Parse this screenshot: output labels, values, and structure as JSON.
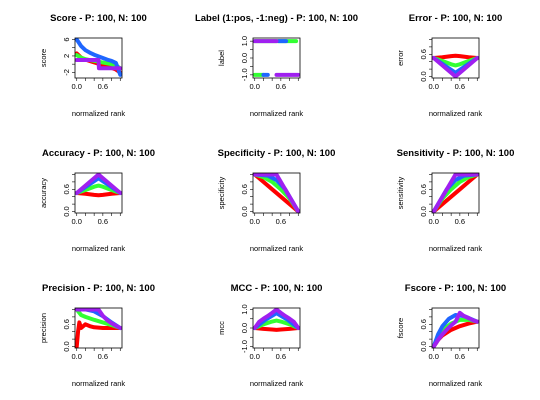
{
  "chart_data": [
    {
      "type": "line",
      "title": "Score - P: 100, N: 100",
      "xlabel": "normalized rank",
      "ylabel": "score",
      "xlim": [
        0,
        1
      ],
      "ylim": [
        -3,
        6
      ],
      "xticks": [
        "0.0",
        "0.6"
      ],
      "yticks": [
        "-2",
        "2",
        "6"
      ],
      "series": [
        {
          "color": "#ff0000",
          "x": [
            0,
            0.1,
            0.2,
            0.35,
            0.5,
            0.65,
            0.8,
            0.9,
            1.0
          ],
          "y": [
            2.6,
            1.6,
            1.1,
            0.6,
            0.1,
            -0.4,
            -0.9,
            -1.3,
            -2.0
          ]
        },
        {
          "color": "#33ff33",
          "x": [
            0,
            0.1,
            0.2,
            0.35,
            0.5,
            0.65,
            0.8,
            0.9,
            1.0
          ],
          "y": [
            2.2,
            1.6,
            1.2,
            0.9,
            0.6,
            0.3,
            0.0,
            -0.3,
            -1.0
          ]
        },
        {
          "color": "#1f66ff",
          "x": [
            0,
            0.05,
            0.1,
            0.2,
            0.3,
            0.4,
            0.5,
            0.6,
            0.7,
            0.8,
            0.9,
            1.0
          ],
          "y": [
            6.0,
            5.2,
            4.4,
            3.4,
            2.8,
            2.3,
            1.9,
            1.5,
            1.1,
            0.8,
            0.3,
            -2.6
          ]
        },
        {
          "color": "#a020f0",
          "x": [
            0,
            0.5,
            0.51,
            1.0
          ],
          "y": [
            1.0,
            1.0,
            -1.0,
            -1.0
          ]
        }
      ]
    },
    {
      "type": "scatter",
      "title": "Label (1:pos, -1:neg) - P: 100, N: 100",
      "xlabel": "normalized rank",
      "ylabel": "label",
      "xlim": [
        0,
        1
      ],
      "ylim": [
        -1.1,
        1.1
      ],
      "xticks": [
        "0.0",
        "0.6"
      ],
      "yticks": [
        "-1.0",
        "0.0",
        "1.0"
      ],
      "series": [
        {
          "color": "#33ff33",
          "x": [
            0,
            0.95
          ],
          "y": [
            1,
            1
          ]
        },
        {
          "color": "#33ff33",
          "x": [
            0,
            0.2
          ],
          "y": [
            -1,
            -1
          ]
        },
        {
          "color": "#1f66ff",
          "x": [
            0.55,
            0.72
          ],
          "y": [
            1,
            1
          ]
        },
        {
          "color": "#1f66ff",
          "x": [
            0.2,
            0.3
          ],
          "y": [
            -1,
            -1
          ]
        },
        {
          "color": "#a020f0",
          "x": [
            0,
            0.5
          ],
          "y": [
            1,
            1
          ]
        },
        {
          "color": "#a020f0",
          "x": [
            0.5,
            1.0
          ],
          "y": [
            -1,
            -1
          ]
        }
      ]
    },
    {
      "type": "line",
      "title": "Error - P: 100, N: 100",
      "xlabel": "normalized rank",
      "ylabel": "error",
      "xlim": [
        0,
        1
      ],
      "ylim": [
        0,
        1
      ],
      "xticks": [
        "0.0",
        "0.6"
      ],
      "yticks": [
        "0.0",
        "0.6"
      ],
      "series": [
        {
          "color": "#ff0000",
          "x": [
            0,
            0.2,
            0.4,
            0.5,
            0.6,
            0.8,
            1.0
          ],
          "y": [
            0.5,
            0.52,
            0.55,
            0.56,
            0.55,
            0.52,
            0.5
          ]
        },
        {
          "color": "#33ff33",
          "x": [
            0,
            0.2,
            0.4,
            0.5,
            0.6,
            0.8,
            1.0
          ],
          "y": [
            0.5,
            0.42,
            0.33,
            0.3,
            0.33,
            0.42,
            0.5
          ]
        },
        {
          "color": "#1f66ff",
          "x": [
            0,
            0.25,
            0.5,
            0.75,
            1.0
          ],
          "y": [
            0.5,
            0.3,
            0.1,
            0.3,
            0.5
          ]
        },
        {
          "color": "#a020f0",
          "x": [
            0,
            0.5,
            1.0
          ],
          "y": [
            0.5,
            0.0,
            0.5
          ]
        }
      ]
    },
    {
      "type": "line",
      "title": "Accuracy - P: 100, N: 100",
      "xlabel": "normalized rank",
      "ylabel": "accuracy",
      "xlim": [
        0,
        1
      ],
      "ylim": [
        0,
        1
      ],
      "xticks": [
        "0.0",
        "0.6"
      ],
      "yticks": [
        "0.0",
        "0.6"
      ],
      "series": [
        {
          "color": "#ff0000",
          "x": [
            0,
            0.2,
            0.4,
            0.5,
            0.6,
            0.8,
            1.0
          ],
          "y": [
            0.5,
            0.48,
            0.45,
            0.44,
            0.45,
            0.48,
            0.5
          ]
        },
        {
          "color": "#33ff33",
          "x": [
            0,
            0.2,
            0.4,
            0.5,
            0.6,
            0.8,
            1.0
          ],
          "y": [
            0.5,
            0.58,
            0.67,
            0.7,
            0.67,
            0.58,
            0.5
          ]
        },
        {
          "color": "#1f66ff",
          "x": [
            0,
            0.25,
            0.5,
            0.75,
            1.0
          ],
          "y": [
            0.5,
            0.7,
            0.9,
            0.7,
            0.5
          ]
        },
        {
          "color": "#a020f0",
          "x": [
            0,
            0.5,
            1.0
          ],
          "y": [
            0.5,
            1.0,
            0.5
          ]
        }
      ]
    },
    {
      "type": "line",
      "title": "Specificity - P: 100, N: 100",
      "xlabel": "normalized rank",
      "ylabel": "specificity",
      "xlim": [
        0,
        1
      ],
      "ylim": [
        0,
        1
      ],
      "xticks": [
        "0.0",
        "0.6"
      ],
      "yticks": [
        "0.0",
        "0.6"
      ],
      "series": [
        {
          "color": "#ff0000",
          "x": [
            0,
            0.2,
            0.4,
            0.6,
            0.8,
            1.0
          ],
          "y": [
            1.0,
            0.8,
            0.6,
            0.4,
            0.2,
            0.0
          ]
        },
        {
          "color": "#33ff33",
          "x": [
            0,
            0.2,
            0.4,
            0.6,
            0.8,
            0.9,
            1.0
          ],
          "y": [
            1.0,
            0.93,
            0.8,
            0.6,
            0.35,
            0.18,
            0.0
          ]
        },
        {
          "color": "#1f66ff",
          "x": [
            0,
            0.3,
            0.5,
            0.7,
            0.9,
            1.0
          ],
          "y": [
            1.0,
            0.97,
            0.85,
            0.6,
            0.2,
            0.0
          ]
        },
        {
          "color": "#a020f0",
          "x": [
            0,
            0.5,
            1.0
          ],
          "y": [
            1.0,
            1.0,
            0.0
          ]
        }
      ]
    },
    {
      "type": "line",
      "title": "Sensitivity - P: 100, N: 100",
      "xlabel": "normalized rank",
      "ylabel": "sensitivity",
      "xlim": [
        0,
        1
      ],
      "ylim": [
        0,
        1
      ],
      "xticks": [
        "0.0",
        "0.6"
      ],
      "yticks": [
        "0.0",
        "0.6"
      ],
      "series": [
        {
          "color": "#ff0000",
          "x": [
            0,
            0.2,
            0.4,
            0.6,
            0.8,
            1.0
          ],
          "y": [
            0.0,
            0.2,
            0.4,
            0.6,
            0.8,
            1.0
          ]
        },
        {
          "color": "#33ff33",
          "x": [
            0,
            0.1,
            0.2,
            0.4,
            0.6,
            0.8,
            1.0
          ],
          "y": [
            0.0,
            0.18,
            0.35,
            0.6,
            0.8,
            0.93,
            1.0
          ]
        },
        {
          "color": "#1f66ff",
          "x": [
            0,
            0.1,
            0.3,
            0.5,
            0.7,
            1.0
          ],
          "y": [
            0.0,
            0.2,
            0.6,
            0.85,
            0.97,
            1.0
          ]
        },
        {
          "color": "#a020f0",
          "x": [
            0,
            0.5,
            1.0
          ],
          "y": [
            0.0,
            1.0,
            1.0
          ]
        }
      ]
    },
    {
      "type": "line",
      "title": "Precision - P: 100, N: 100",
      "xlabel": "normalized rank",
      "ylabel": "precision",
      "xlim": [
        0,
        1
      ],
      "ylim": [
        0,
        1
      ],
      "xticks": [
        "0.0",
        "0.6"
      ],
      "yticks": [
        "0.0",
        "0.6"
      ],
      "series": [
        {
          "color": "#ff0000",
          "x": [
            0,
            0.03,
            0.06,
            0.1,
            0.2,
            0.3,
            0.4,
            0.6,
            0.8,
            1.0
          ],
          "y": [
            0.0,
            0.4,
            0.65,
            0.5,
            0.6,
            0.55,
            0.52,
            0.5,
            0.5,
            0.5
          ]
        },
        {
          "color": "#33ff33",
          "x": [
            0,
            0.1,
            0.2,
            0.4,
            0.6,
            0.8,
            1.0
          ],
          "y": [
            1.0,
            0.85,
            0.8,
            0.72,
            0.65,
            0.58,
            0.5
          ]
        },
        {
          "color": "#1f66ff",
          "x": [
            0,
            0.2,
            0.4,
            0.6,
            0.8,
            1.0
          ],
          "y": [
            1.0,
            1.0,
            0.95,
            0.82,
            0.65,
            0.5
          ]
        },
        {
          "color": "#a020f0",
          "x": [
            0,
            0.5,
            0.6,
            0.7,
            0.8,
            0.9,
            1.0
          ],
          "y": [
            1.0,
            1.0,
            0.83,
            0.71,
            0.63,
            0.56,
            0.5
          ]
        }
      ]
    },
    {
      "type": "line",
      "title": "MCC - P: 100, N: 100",
      "xlabel": "normalized rank",
      "ylabel": "mcc",
      "xlim": [
        0,
        1
      ],
      "ylim": [
        -1,
        1
      ],
      "xticks": [
        "0.0",
        "0.6"
      ],
      "yticks": [
        "-1.0",
        "0.0",
        "1.0"
      ],
      "series": [
        {
          "color": "#ff0000",
          "x": [
            0,
            0.2,
            0.4,
            0.5,
            0.6,
            0.8,
            1.0
          ],
          "y": [
            0.0,
            -0.05,
            -0.08,
            -0.1,
            -0.08,
            -0.05,
            0.0
          ]
        },
        {
          "color": "#33ff33",
          "x": [
            0,
            0.2,
            0.4,
            0.5,
            0.6,
            0.8,
            1.0
          ],
          "y": [
            0.0,
            0.2,
            0.35,
            0.4,
            0.35,
            0.2,
            0.0
          ]
        },
        {
          "color": "#1f66ff",
          "x": [
            0,
            0.25,
            0.5,
            0.75,
            1.0
          ],
          "y": [
            0.0,
            0.45,
            0.8,
            0.45,
            0.0
          ]
        },
        {
          "color": "#a020f0",
          "x": [
            0,
            0.1,
            0.2,
            0.3,
            0.4,
            0.5,
            0.6,
            0.7,
            0.8,
            0.9,
            1.0
          ],
          "y": [
            0.0,
            0.33,
            0.5,
            0.65,
            0.82,
            1.0,
            0.82,
            0.65,
            0.5,
            0.33,
            0.0
          ]
        }
      ]
    },
    {
      "type": "line",
      "title": "Fscore - P: 100, N: 100",
      "xlabel": "normalized rank",
      "ylabel": "fscore",
      "xlim": [
        0,
        1
      ],
      "ylim": [
        0,
        1
      ],
      "xticks": [
        "0.0",
        "0.6"
      ],
      "yticks": [
        "0.0",
        "0.6"
      ],
      "series": [
        {
          "color": "#ff0000",
          "x": [
            0,
            0.1,
            0.2,
            0.4,
            0.6,
            0.8,
            1.0
          ],
          "y": [
            0.0,
            0.18,
            0.3,
            0.45,
            0.55,
            0.62,
            0.67
          ]
        },
        {
          "color": "#33ff33",
          "x": [
            0,
            0.1,
            0.2,
            0.4,
            0.6,
            0.8,
            1.0
          ],
          "y": [
            0.0,
            0.28,
            0.45,
            0.62,
            0.72,
            0.72,
            0.67
          ]
        },
        {
          "color": "#1f66ff",
          "x": [
            0,
            0.1,
            0.2,
            0.35,
            0.5,
            0.7,
            1.0
          ],
          "y": [
            0.0,
            0.33,
            0.55,
            0.75,
            0.85,
            0.82,
            0.67
          ]
        },
        {
          "color": "#a020f0",
          "x": [
            0,
            0.1,
            0.2,
            0.3,
            0.4,
            0.5,
            0.6,
            0.7,
            0.8,
            0.9,
            1.0
          ],
          "y": [
            0.0,
            0.18,
            0.33,
            0.46,
            0.57,
            0.67,
            0.91,
            0.82,
            0.77,
            0.71,
            0.67
          ]
        }
      ]
    }
  ]
}
